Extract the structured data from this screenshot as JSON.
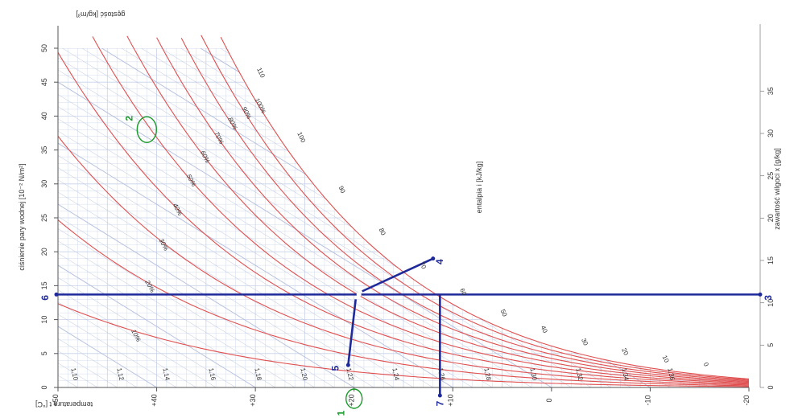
{
  "chart_data": {
    "type": "psychrometric (Mollier h-x) chart, printed rotated",
    "bottom_axis": {
      "label": "temperatura t [°C]",
      "ticks": [
        "+50",
        "+40",
        "+30",
        "+20",
        "+10",
        "0",
        "-10",
        "-20"
      ],
      "values": [
        50,
        40,
        30,
        20,
        10,
        0,
        -10,
        -20
      ]
    },
    "left_axis": {
      "label": "ciśnienie pary wodnej [10⁻² N/m²]",
      "ticks": [
        "0",
        "5",
        "10",
        "15",
        "20",
        "25",
        "30",
        "35",
        "40",
        "45",
        "50"
      ],
      "values": [
        0,
        5,
        10,
        15,
        20,
        25,
        30,
        35,
        40,
        45,
        50
      ]
    },
    "right_axis": {
      "label": "zawartość wilgoci x [g/kg]",
      "ticks": [
        "0",
        "5",
        "10",
        "15",
        "20",
        "25",
        "30",
        "35"
      ],
      "values": [
        0,
        5,
        10,
        15,
        20,
        25,
        30,
        35
      ]
    },
    "top_label": "gęstość [kg/m³]",
    "enthalpy_label": "entalpia i [kJ/kg]",
    "relative_humidity_curves": {
      "values_percent": [
        10,
        20,
        30,
        40,
        50,
        60,
        70,
        80,
        90,
        100
      ],
      "labels": [
        "10%",
        "20%",
        "30%",
        "40%",
        "50%",
        "60%",
        "70%",
        "80%",
        "90%",
        "100%"
      ]
    },
    "enthalpy_lines": {
      "values": [
        0,
        10,
        20,
        30,
        40,
        50,
        60,
        70,
        80,
        90,
        100,
        110
      ],
      "labels": [
        "0",
        "10",
        "20",
        "30",
        "40",
        "50",
        "60",
        "70",
        "80",
        "90",
        "100",
        "110"
      ]
    },
    "density_lines": {
      "values": [
        1.1,
        1.12,
        1.14,
        1.16,
        1.18,
        1.2,
        1.22,
        1.24,
        1.26,
        1.28,
        1.3,
        1.32,
        1.34,
        1.36
      ],
      "labels": [
        "1,10",
        "1,12",
        "1,14",
        "1,16",
        "1,18",
        "1,20",
        "1,22",
        "1,24",
        "1,26",
        "1,28",
        "1,30",
        "1,32",
        "1,34",
        "1,36"
      ]
    },
    "markers": [
      {
        "id": "1",
        "color": "#1a9a2a",
        "t": 20
      },
      {
        "id": "2",
        "color": "#1a9a2a",
        "t": 41,
        "p": 38
      },
      {
        "id": "3",
        "color": "#1f2a9a",
        "x": 8.4
      },
      {
        "id": "4",
        "color": "#1f2a9a",
        "t": 12,
        "p": 19
      },
      {
        "id": "5",
        "color": "#1f2a9a",
        "t": 20.6,
        "p": 3.3
      },
      {
        "id": "6",
        "color": "#1f2a9a",
        "p": 13.7
      },
      {
        "id": "7",
        "color": "#1f2a9a",
        "t": 11
      }
    ],
    "state_point": {
      "t": 20,
      "p": 13.7
    },
    "dew_point": {
      "t": 11.3,
      "p": 13.7
    },
    "colors": {
      "rh": "#e05050",
      "grid": "#c8d2e8",
      "enthalpy": "#b4bedc",
      "marker": "#1f2a9a",
      "green": "#1a9a2a"
    }
  }
}
